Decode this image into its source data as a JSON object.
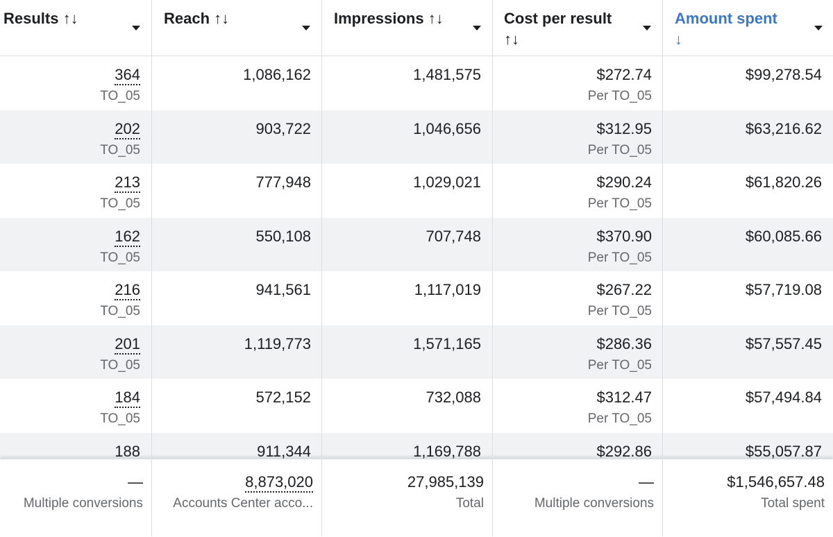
{
  "header": {
    "results": {
      "label": "Results ↑↓"
    },
    "reach": {
      "label": "Reach ↑↓"
    },
    "impressions": {
      "label": "Impressions ↑↓"
    },
    "cost_per_result": {
      "label_line1": "Cost per result",
      "label_line2": "↑↓"
    },
    "amount_spent": {
      "label_line1": "Amount spent",
      "label_line2": "↓"
    },
    "active_sort_color": "#3a78c5"
  },
  "rows": [
    {
      "results": "364",
      "results_sub": "TO_05",
      "reach": "1,086,162",
      "impressions": "1,481,575",
      "cost": "$272.74",
      "cost_sub": "Per TO_05",
      "spent": "$99,278.54"
    },
    {
      "results": "202",
      "results_sub": "TO_05",
      "reach": "903,722",
      "impressions": "1,046,656",
      "cost": "$312.95",
      "cost_sub": "Per TO_05",
      "spent": "$63,216.62"
    },
    {
      "results": "213",
      "results_sub": "TO_05",
      "reach": "777,948",
      "impressions": "1,029,021",
      "cost": "$290.24",
      "cost_sub": "Per TO_05",
      "spent": "$61,820.26"
    },
    {
      "results": "162",
      "results_sub": "TO_05",
      "reach": "550,108",
      "impressions": "707,748",
      "cost": "$370.90",
      "cost_sub": "Per TO_05",
      "spent": "$60,085.66"
    },
    {
      "results": "216",
      "results_sub": "TO_05",
      "reach": "941,561",
      "impressions": "1,117,019",
      "cost": "$267.22",
      "cost_sub": "Per TO_05",
      "spent": "$57,719.08"
    },
    {
      "results": "201",
      "results_sub": "TO_05",
      "reach": "1,119,773",
      "impressions": "1,571,165",
      "cost": "$286.36",
      "cost_sub": "Per TO_05",
      "spent": "$57,557.45"
    },
    {
      "results": "184",
      "results_sub": "TO_05",
      "reach": "572,152",
      "impressions": "732,088",
      "cost": "$312.47",
      "cost_sub": "Per TO_05",
      "spent": "$57,494.84"
    },
    {
      "results": "188",
      "results_sub": "",
      "reach": "911,344",
      "impressions": "1,169,788",
      "cost": "$292.86",
      "cost_sub": "",
      "spent": "$55,057.87"
    }
  ],
  "footer": {
    "results": {
      "value": "—",
      "sub": "Multiple conversions"
    },
    "reach": {
      "value": "8,873,020",
      "sub": "Accounts Center acco..."
    },
    "impressions": {
      "value": "27,985,139",
      "sub": "Total"
    },
    "cost": {
      "value": "—",
      "sub": "Multiple conversions"
    },
    "spent": {
      "value": "$1,546,657.48",
      "sub": "Total spent"
    }
  }
}
